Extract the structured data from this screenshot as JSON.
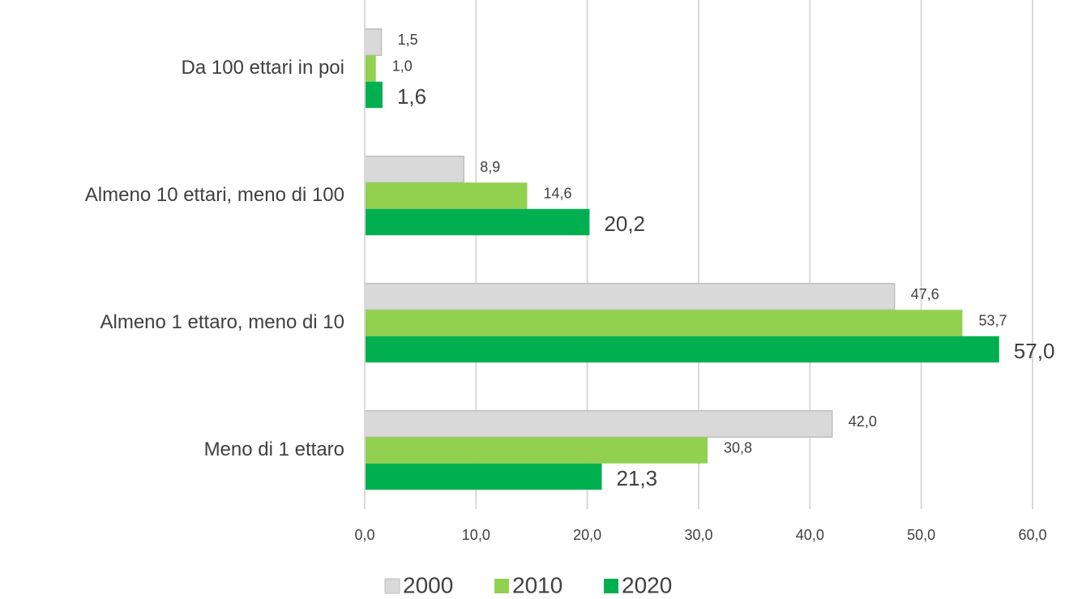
{
  "chart_data": {
    "type": "hbar",
    "categories": [
      "Da 100 ettari in poi",
      "Almeno 10 ettari, meno di 100",
      "Almeno 1 ettaro, meno di 10",
      "Meno di 1 ettaro"
    ],
    "series": [
      {
        "name": "2000",
        "color": "#d9d9d9",
        "values": [
          1.5,
          8.9,
          47.6,
          42.0
        ],
        "value_labels": [
          "1,5",
          "8,9",
          "47,6",
          "42,0"
        ]
      },
      {
        "name": "2010",
        "color": "#92d050",
        "values": [
          1.0,
          14.6,
          53.7,
          30.8
        ],
        "value_labels": [
          "1,0",
          "14,6",
          "53,7",
          "30,8"
        ]
      },
      {
        "name": "2020",
        "color": "#00b050",
        "values": [
          1.6,
          20.2,
          57.0,
          21.3
        ],
        "value_labels": [
          "1,6",
          "20,2",
          "57,0",
          "21,3"
        ]
      }
    ],
    "xlim": [
      0,
      60
    ],
    "xticks": [
      {
        "value": 0,
        "label": "0,0"
      },
      {
        "value": 10,
        "label": "10,0"
      },
      {
        "value": 20,
        "label": "20,0"
      },
      {
        "value": 30,
        "label": "30,0"
      },
      {
        "value": 40,
        "label": "40,0"
      },
      {
        "value": 50,
        "label": "50,0"
      },
      {
        "value": 60,
        "label": "60,0"
      }
    ],
    "grid": true,
    "legend": "bottom"
  }
}
